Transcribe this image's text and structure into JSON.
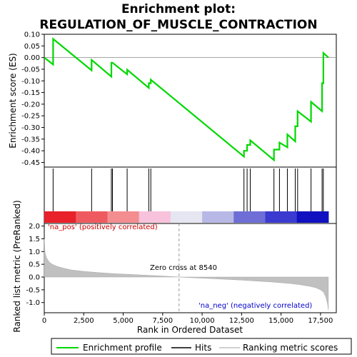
{
  "chart_data": {
    "type": "line",
    "title_line1": "Enrichment plot:",
    "title_line2": "REGULATION_OF_MUSCLE_CONTRACTION",
    "es_ylabel": "Enrichment score (ES)",
    "metric_ylabel": "Ranked list metric (PreRanked)",
    "xlabel": "Rank in Dataset",
    "xlabel_full": "Rank in Ordered Dataset",
    "xlim": [
      0,
      18500
    ],
    "x_ticks": [
      0,
      2500,
      5000,
      7500,
      10000,
      12500,
      15000,
      17500
    ],
    "x_tick_labels": [
      "0",
      "2,500",
      "5,000",
      "7,500",
      "10,000",
      "12,500",
      "15,000",
      "17,500"
    ],
    "es_ylim": [
      -0.47,
      0.1
    ],
    "es_ticks": [
      0.1,
      0.05,
      0.0,
      -0.05,
      -0.1,
      -0.15,
      -0.2,
      -0.25,
      -0.3,
      -0.35,
      -0.4,
      -0.45
    ],
    "es_tick_labels": [
      "0.10",
      "0.05",
      "0.00",
      "-0.05",
      "-0.10",
      "-0.15",
      "-0.20",
      "-0.25",
      "-0.30",
      "-0.35",
      "-0.40",
      "-0.45"
    ],
    "metric_ylim": [
      -1.4,
      2.1
    ],
    "metric_ticks": [
      2.0,
      1.5,
      1.0,
      0.5,
      0.0,
      -0.5,
      -1.0
    ],
    "metric_tick_labels": [
      "2.0",
      "1.5",
      "1.0",
      "0.5",
      "0.0",
      "-0.5",
      "-1.0"
    ],
    "hits": [
      560,
      3000,
      4250,
      4320,
      5250,
      6620,
      6750,
      12650,
      12850,
      13050,
      14550,
      14900,
      15400,
      15900,
      16050,
      16900,
      17600,
      17680
    ],
    "es_series": {
      "name": "Enrichment profile",
      "x": [
        0,
        560,
        560,
        3000,
        3000,
        4250,
        4250,
        4320,
        4320,
        5250,
        5250,
        6620,
        6620,
        6750,
        6750,
        12650,
        12650,
        12850,
        12850,
        13050,
        13050,
        14550,
        14550,
        14900,
        14900,
        15400,
        15400,
        15900,
        15900,
        16050,
        16050,
        16900,
        16900,
        17600,
        17600,
        17680,
        17680,
        18000
      ],
      "y": [
        0.0,
        -0.03,
        0.08,
        -0.055,
        -0.01,
        -0.082,
        -0.022,
        -0.022,
        -0.022,
        -0.072,
        -0.052,
        -0.13,
        -0.11,
        -0.11,
        -0.095,
        -0.425,
        -0.4,
        -0.4,
        -0.375,
        -0.375,
        -0.355,
        -0.44,
        -0.395,
        -0.395,
        -0.365,
        -0.385,
        -0.33,
        -0.36,
        -0.295,
        -0.295,
        -0.23,
        -0.275,
        -0.19,
        -0.23,
        -0.11,
        -0.11,
        0.02,
        0.0
      ]
    },
    "metric_series": {
      "name": "Ranking metric scores",
      "x": [
        0,
        50,
        150,
        300,
        500,
        800,
        1200,
        1700,
        2500,
        3500,
        4500,
        5500,
        6500,
        7500,
        8540,
        9500,
        10500,
        11500,
        12500,
        13500,
        14500,
        15500,
        16200,
        16800,
        17200,
        17500,
        17700,
        17850,
        17950,
        18000
      ],
      "y": [
        1.5,
        0.95,
        0.75,
        0.6,
        0.5,
        0.42,
        0.35,
        0.28,
        0.22,
        0.17,
        0.13,
        0.1,
        0.07,
        0.04,
        0.0,
        -0.03,
        -0.06,
        -0.09,
        -0.12,
        -0.16,
        -0.2,
        -0.25,
        -0.3,
        -0.36,
        -0.42,
        -0.5,
        -0.6,
        -0.8,
        -1.05,
        -1.3
      ]
    },
    "pos_label": "'na_pos' (positively correlated)",
    "neg_label": "'na_neg' (negatively correlated)",
    "zero_cross_label": "Zero cross at 8540",
    "zero_cross": 8540,
    "heat_colors": [
      "#e8212a",
      "#ef5a60",
      "#f38d90",
      "#f8c2dc",
      "#e6e6f2",
      "#b8b8e6",
      "#6e6ed6",
      "#3a3ad0",
      "#1010c0"
    ],
    "legend": [
      "Enrichment profile",
      "Hits",
      "Ranking metric scores"
    ],
    "colors": {
      "es_line": "#00d800",
      "hit": "#000000",
      "metric_fill": "#c0c0c0",
      "pos_text": "#cc0000",
      "neg_text": "#0000cc"
    }
  }
}
